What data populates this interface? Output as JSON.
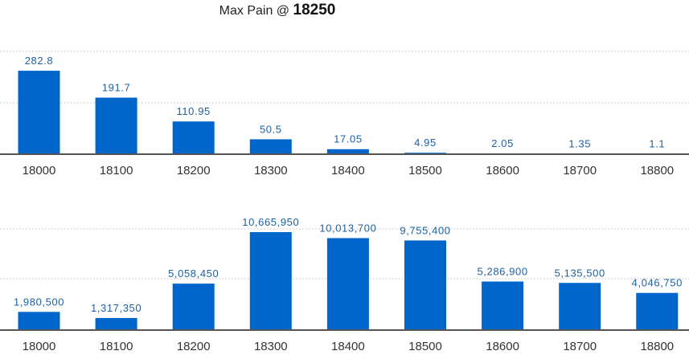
{
  "header": {
    "title_prefix": "Max Pain @",
    "max_pain_value": "18250"
  },
  "colors": {
    "bar": "#0066cc",
    "data_label": "#1f5f9e",
    "axis": "#555555",
    "grid": "#cfcfcf"
  },
  "chart_data": [
    {
      "type": "bar",
      "categories": [
        "18000",
        "18100",
        "18200",
        "18300",
        "18400",
        "18500",
        "18600",
        "18700",
        "18800"
      ],
      "values": [
        282.8,
        191.7,
        110.95,
        50.5,
        17.05,
        4.95,
        2.05,
        1.35,
        1.1
      ],
      "value_labels": [
        "282.8",
        "191.7",
        "110.95",
        "50.5",
        "17.05",
        "4.95",
        "2.05",
        "1.35",
        "1.1"
      ],
      "ylim": [
        0,
        430
      ],
      "grid": true
    },
    {
      "type": "bar",
      "categories": [
        "18000",
        "18100",
        "18200",
        "18300",
        "18400",
        "18500",
        "18600",
        "18700",
        "18800"
      ],
      "values": [
        1980500,
        1317350,
        5058450,
        10665950,
        10013700,
        9755400,
        5286900,
        5135500,
        4046750
      ],
      "value_labels": [
        "1,980,500",
        "1,317,350",
        "5,058,450",
        "10,665,950",
        "10,013,700",
        "9,755,400",
        "5,286,900",
        "5,135,500",
        "4,046,750"
      ],
      "ylim": [
        0,
        14600000
      ],
      "grid": true
    }
  ]
}
